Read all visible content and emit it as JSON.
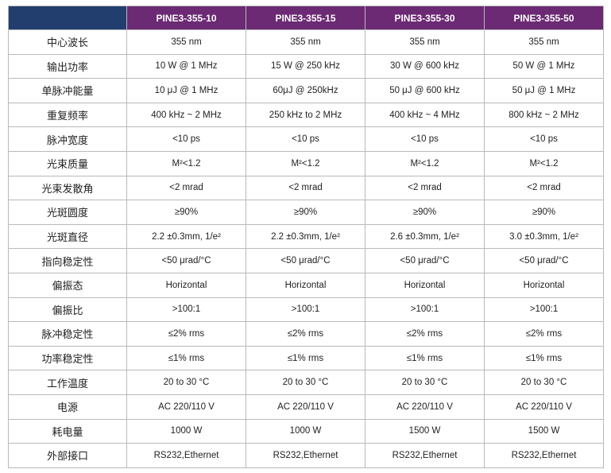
{
  "table": {
    "corner": "",
    "columns": [
      "PINE3-355-10",
      "PINE3-355-15",
      "PINE3-355-30",
      "PINE3-355-50"
    ],
    "rows": [
      {
        "label": "中心波长",
        "values": [
          "355 nm",
          "355 nm",
          "355 nm",
          "355 nm"
        ]
      },
      {
        "label": "输出功率",
        "values": [
          "10 W @ 1 MHz",
          "15 W @ 250 kHz",
          "30 W @ 600 kHz",
          "50 W @ 1 MHz"
        ]
      },
      {
        "label": "单脉冲能量",
        "values": [
          "10 μJ @ 1 MHz",
          "60μJ @ 250kHz",
          "50 μJ @ 600 kHz",
          "50 μJ @ 1 MHz"
        ]
      },
      {
        "label": "重复频率",
        "values": [
          "400 kHz ~ 2 MHz",
          "250 kHz to 2 MHz",
          "400 kHz ~ 4 MHz",
          "800 kHz ~ 2 MHz"
        ]
      },
      {
        "label": "脉冲宽度",
        "values": [
          "<10 ps",
          "<10 ps",
          "<10 ps",
          "<10 ps"
        ]
      },
      {
        "label": "光束质量",
        "values": [
          "M²<1.2",
          "M²<1.2",
          "M²<1.2",
          "M²<1.2"
        ]
      },
      {
        "label": "光束发散角",
        "values": [
          "<2 mrad",
          "<2 mrad",
          "<2 mrad",
          "<2 mrad"
        ]
      },
      {
        "label": "光斑圆度",
        "values": [
          "≥90%",
          "≥90%",
          "≥90%",
          "≥90%"
        ]
      },
      {
        "label": "光斑直径",
        "values": [
          "2.2 ±0.3mm, 1/e²",
          "2.2 ±0.3mm, 1/e²",
          "2.6 ±0.3mm, 1/e²",
          "3.0 ±0.3mm, 1/e²"
        ]
      },
      {
        "label": "指向稳定性",
        "values": [
          "<50 μrad/°C",
          "<50 μrad/°C",
          "<50 μrad/°C",
          "<50 μrad/°C"
        ]
      },
      {
        "label": "偏振态",
        "values": [
          "Horizontal",
          "Horizontal",
          "Horizontal",
          "Horizontal"
        ]
      },
      {
        "label": "偏振比",
        "values": [
          ">100:1",
          ">100:1",
          ">100:1",
          ">100:1"
        ]
      },
      {
        "label": "脉冲稳定性",
        "values": [
          "≤2% rms",
          "≤2% rms",
          "≤2% rms",
          "≤2% rms"
        ]
      },
      {
        "label": "功率稳定性",
        "values": [
          "≤1% rms",
          "≤1% rms",
          "≤1% rms",
          "≤1% rms"
        ]
      },
      {
        "label": "工作温度",
        "values": [
          "20 to 30 °C",
          "20 to 30 °C",
          "20 to 30 °C",
          "20 to 30 °C"
        ]
      },
      {
        "label": "电源",
        "values": [
          "AC 220/110 V",
          "AC 220/110 V",
          "AC 220/110 V",
          "AC 220/110 V"
        ]
      },
      {
        "label": "耗电量",
        "values": [
          "1000 W",
          "1000 W",
          "1500 W",
          "1500 W"
        ]
      },
      {
        "label": "外部接口",
        "values": [
          "RS232,Ethernet",
          "RS232,Ethernet",
          "RS232,Ethernet",
          "RS232,Ethernet"
        ]
      }
    ]
  },
  "colors": {
    "corner_header": "#213e6e",
    "model_header": "#6b2a73",
    "grid_line": "#b9b9b9"
  }
}
